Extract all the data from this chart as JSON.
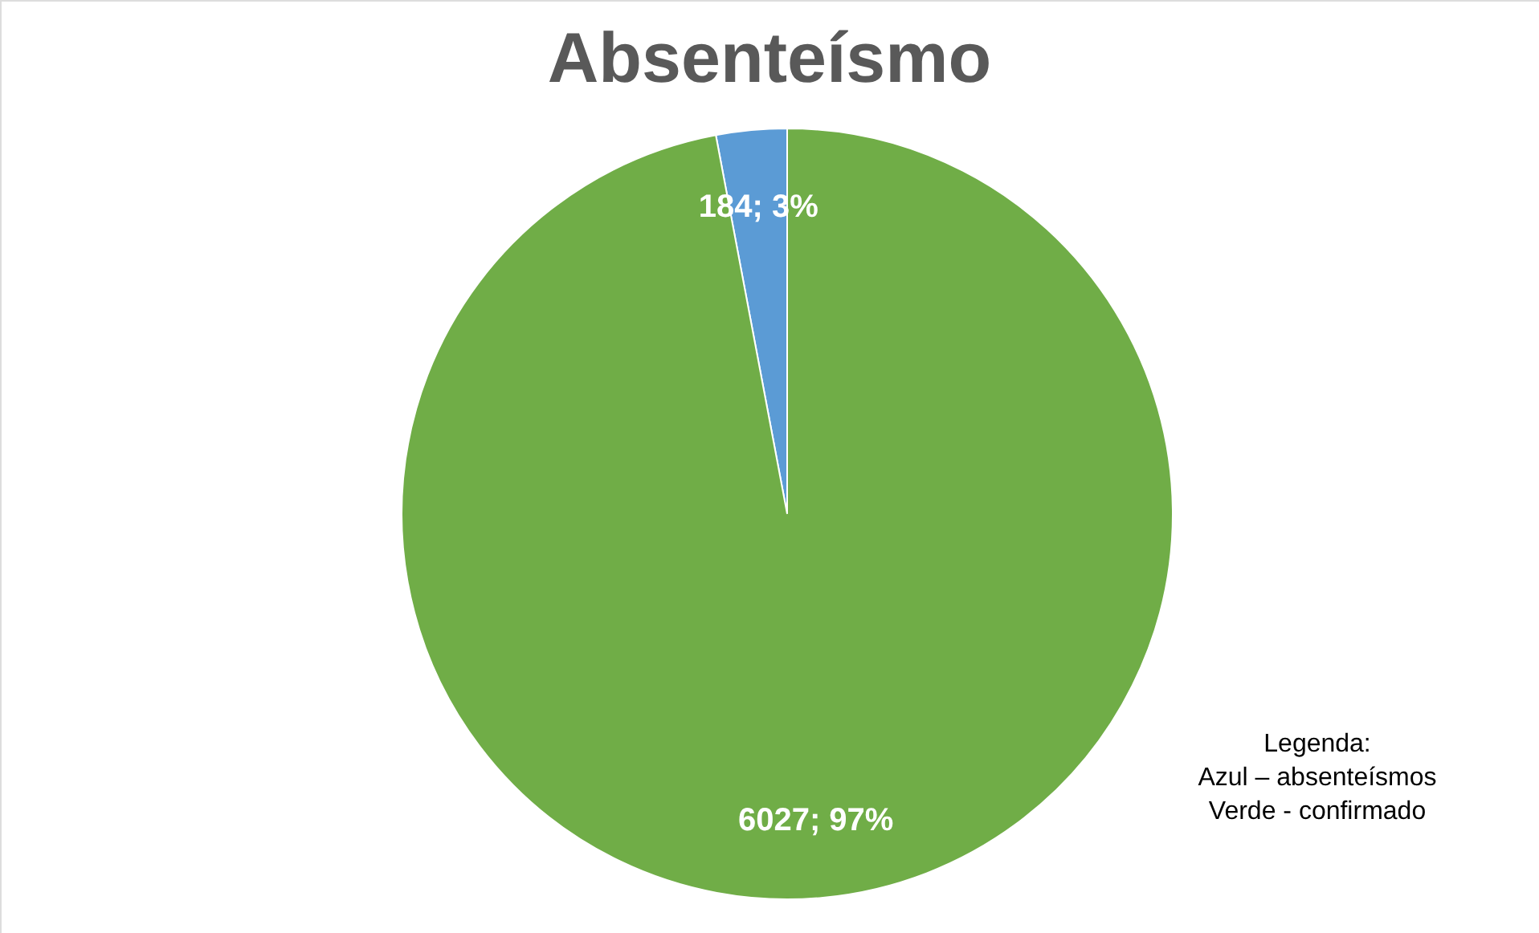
{
  "chart_data": {
    "type": "pie",
    "title": "Absenteísmo",
    "categories": [
      null,
      null
    ],
    "values": [
      184,
      6027
    ],
    "colors": [
      "#5b9bd5",
      "#70ad47"
    ],
    "value_labels": [
      "184; 3%",
      "6027; 97%"
    ],
    "legend": false,
    "annotations": [
      "Legenda:\nAzul – absenteísmos\nVerde - confirmado"
    ]
  }
}
